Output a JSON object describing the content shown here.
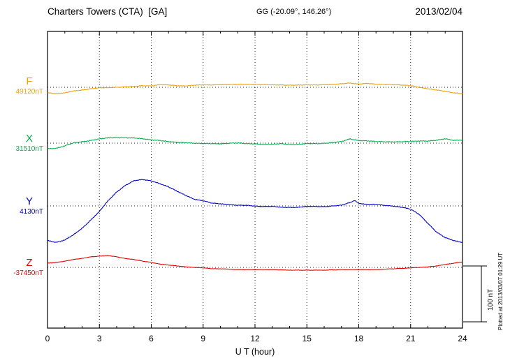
{
  "chart_data": {
    "type": "line",
    "title": "Charters Towers (CTA)  [GA]",
    "coordinates": "GG (-20.09°, 146.26°)",
    "date": "2013/02/04",
    "xlabel": "U T (hour)",
    "x_range": [
      0,
      24
    ],
    "x_ticks": [
      0,
      3,
      6,
      9,
      12,
      15,
      18,
      21,
      24
    ],
    "y_unit": "nT",
    "scale_bar": {
      "label": "100 nT",
      "nT": 100
    },
    "plotted_note": "Plotted at 2013/03/07 01:29 UT",
    "grid": "dotted horizontal baseline per channel, dotted vertical lines every 3 hours",
    "points_format": "[hour_UT, deviation_nT_from_reference]",
    "series": [
      {
        "name": "F",
        "reference_label": "49120nT",
        "reference_nT": 49120,
        "color": "#f0a202",
        "noise_nT": 0.9,
        "points": [
          [
            0,
            -10
          ],
          [
            0.5,
            -11
          ],
          [
            1,
            -10
          ],
          [
            1.5,
            -7
          ],
          [
            2,
            -5
          ],
          [
            2.5,
            -2.5
          ],
          [
            3,
            -1
          ],
          [
            3.5,
            -1
          ],
          [
            4,
            0
          ],
          [
            4.5,
            1
          ],
          [
            5,
            1
          ],
          [
            5.5,
            2.5
          ],
          [
            6,
            2.5
          ],
          [
            6.5,
            5
          ],
          [
            7,
            4
          ],
          [
            7.5,
            2.5
          ],
          [
            8,
            2.5
          ],
          [
            8.5,
            4
          ],
          [
            9,
            4
          ],
          [
            9.5,
            4
          ],
          [
            10,
            5
          ],
          [
            10.5,
            5
          ],
          [
            11,
            5
          ],
          [
            11.5,
            5
          ],
          [
            12,
            5
          ],
          [
            12.5,
            5
          ],
          [
            13,
            4
          ],
          [
            13.5,
            4
          ],
          [
            14,
            4
          ],
          [
            14.5,
            4
          ],
          [
            15,
            4
          ],
          [
            15.5,
            4
          ],
          [
            16,
            5
          ],
          [
            16.5,
            5
          ],
          [
            17,
            6
          ],
          [
            17.5,
            7.5
          ],
          [
            18,
            6
          ],
          [
            18.5,
            7
          ],
          [
            19,
            5
          ],
          [
            19.5,
            5
          ],
          [
            20,
            5
          ],
          [
            20.5,
            4
          ],
          [
            21,
            2.5
          ],
          [
            21.5,
            0
          ],
          [
            22,
            -2.5
          ],
          [
            22.5,
            -5
          ],
          [
            23,
            -7.5
          ],
          [
            23.5,
            -10
          ],
          [
            24,
            -11
          ]
        ]
      },
      {
        "name": "X",
        "reference_label": "31510nT",
        "reference_nT": 31510,
        "color": "#00b04a",
        "noise_nT": 1.1,
        "points": [
          [
            0,
            -10
          ],
          [
            0.5,
            -9
          ],
          [
            1,
            -5
          ],
          [
            1.5,
            0
          ],
          [
            2,
            2.5
          ],
          [
            2.5,
            5
          ],
          [
            3,
            7.5
          ],
          [
            3.5,
            9
          ],
          [
            4,
            10
          ],
          [
            4.5,
            10
          ],
          [
            5,
            9
          ],
          [
            5.5,
            7.5
          ],
          [
            6,
            6
          ],
          [
            6.5,
            5
          ],
          [
            7,
            2.5
          ],
          [
            7.5,
            1
          ],
          [
            8,
            1
          ],
          [
            8.5,
            0
          ],
          [
            9,
            -1
          ],
          [
            9.5,
            -1
          ],
          [
            10,
            -1
          ],
          [
            10.5,
            0
          ],
          [
            11,
            0
          ],
          [
            11.5,
            -1
          ],
          [
            12,
            -1
          ],
          [
            12.5,
            -2.5
          ],
          [
            13,
            -2.5
          ],
          [
            13.5,
            -1
          ],
          [
            14,
            -2.5
          ],
          [
            14.5,
            -2.5
          ],
          [
            15,
            -1
          ],
          [
            15.5,
            -1
          ],
          [
            16,
            0
          ],
          [
            16.5,
            1
          ],
          [
            17,
            2.5
          ],
          [
            17.5,
            7.5
          ],
          [
            18,
            5
          ],
          [
            18.5,
            4
          ],
          [
            19,
            2.5
          ],
          [
            19.5,
            2.5
          ],
          [
            20,
            2.5
          ],
          [
            20.5,
            2.5
          ],
          [
            21,
            2.5
          ],
          [
            21.5,
            4
          ],
          [
            22,
            4
          ],
          [
            22.5,
            5
          ],
          [
            23,
            7.5
          ],
          [
            23.5,
            5
          ],
          [
            24,
            6
          ]
        ]
      },
      {
        "name": "Y",
        "reference_label": "4130nT",
        "reference_nT": 4130,
        "color": "#0000cc",
        "noise_nT": 0.9,
        "points": [
          [
            0,
            -62
          ],
          [
            0.5,
            -65
          ],
          [
            1,
            -61
          ],
          [
            1.5,
            -52
          ],
          [
            2,
            -40
          ],
          [
            2.5,
            -25
          ],
          [
            3,
            -10
          ],
          [
            3.5,
            9
          ],
          [
            4,
            25
          ],
          [
            4.5,
            37
          ],
          [
            5,
            45
          ],
          [
            5.5,
            47
          ],
          [
            6,
            45
          ],
          [
            6.5,
            40
          ],
          [
            7,
            34
          ],
          [
            7.5,
            26
          ],
          [
            8,
            19
          ],
          [
            8.5,
            12
          ],
          [
            9,
            9
          ],
          [
            9.5,
            5
          ],
          [
            10,
            4
          ],
          [
            10.5,
            2.5
          ],
          [
            11,
            1
          ],
          [
            11.5,
            1
          ],
          [
            12,
            0
          ],
          [
            12.5,
            -1
          ],
          [
            13,
            -1
          ],
          [
            13.5,
            -2.5
          ],
          [
            14,
            -2.5
          ],
          [
            14.5,
            -2.5
          ],
          [
            15,
            -1
          ],
          [
            15.5,
            -1
          ],
          [
            16,
            -1
          ],
          [
            16.5,
            0
          ],
          [
            17,
            1
          ],
          [
            17.5,
            6
          ],
          [
            17.75,
            10
          ],
          [
            18,
            5
          ],
          [
            18.5,
            2.5
          ],
          [
            19,
            2.5
          ],
          [
            19.5,
            1
          ],
          [
            20,
            0
          ],
          [
            20.5,
            -2.5
          ],
          [
            21,
            -6
          ],
          [
            21.5,
            -15
          ],
          [
            22,
            -31
          ],
          [
            22.5,
            -47
          ],
          [
            23,
            -57
          ],
          [
            23.5,
            -62
          ],
          [
            24,
            -65
          ]
        ]
      },
      {
        "name": "Z",
        "reference_label": "-37450nT",
        "reference_nT": -37450,
        "color": "#e00000",
        "noise_nT": 0.5,
        "points": [
          [
            0,
            7.5
          ],
          [
            0.5,
            9
          ],
          [
            1,
            11
          ],
          [
            1.5,
            14
          ],
          [
            2,
            16
          ],
          [
            2.5,
            19
          ],
          [
            3,
            20
          ],
          [
            3.5,
            21
          ],
          [
            4,
            19
          ],
          [
            4.5,
            16
          ],
          [
            5,
            14
          ],
          [
            5.5,
            11
          ],
          [
            6,
            9
          ],
          [
            6.5,
            6
          ],
          [
            7,
            4
          ],
          [
            7.5,
            2.5
          ],
          [
            8,
            1
          ],
          [
            8.5,
            0
          ],
          [
            9,
            -1
          ],
          [
            9.5,
            -2.5
          ],
          [
            10,
            -2.5
          ],
          [
            11,
            -4
          ],
          [
            12,
            -4
          ],
          [
            13,
            -4
          ],
          [
            14,
            -5
          ],
          [
            15,
            -5
          ],
          [
            16,
            -5
          ],
          [
            17,
            -4
          ],
          [
            18,
            -4
          ],
          [
            19,
            -4
          ],
          [
            20,
            -2.5
          ],
          [
            21,
            -1
          ],
          [
            21.5,
            0
          ],
          [
            22,
            1
          ],
          [
            22.5,
            2.5
          ],
          [
            23,
            5
          ],
          [
            23.5,
            7.5
          ],
          [
            24,
            10
          ]
        ]
      }
    ]
  }
}
